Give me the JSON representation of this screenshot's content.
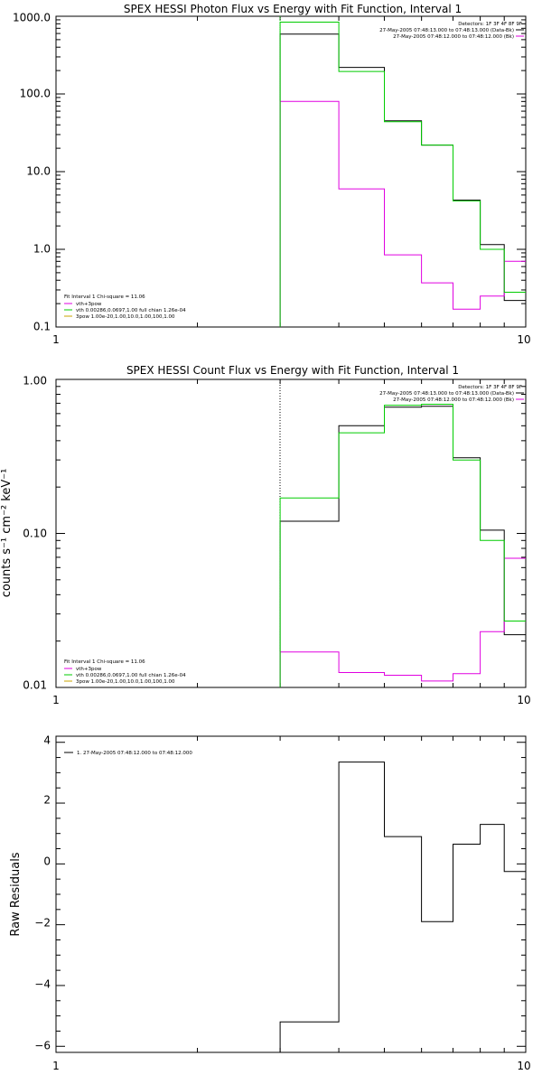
{
  "colors": {
    "background": "#ffffff",
    "axes": "#000000",
    "data_black": "#000000",
    "model_magenta": "#e000e0",
    "model_green": "#00cc00"
  },
  "chart_data": [
    {
      "type": "line",
      "title": "SPEX HESSI Photon Flux vs Energy with Fit Function, Interval 1",
      "xlabel": "",
      "ylabel": "",
      "xscale": "log",
      "yscale": "log",
      "xlim": [
        1,
        10
      ],
      "ylim": [
        0.1,
        1000
      ],
      "x_tick_labels": [
        "1",
        "10"
      ],
      "y_tick_labels": [
        "0.1",
        "1.0",
        "10.0",
        "100.0",
        "1000.0"
      ],
      "y_ticks": [
        0.1,
        1,
        10,
        100,
        1000
      ],
      "energy_edges": [
        3,
        4,
        5,
        6,
        7,
        8,
        9,
        10
      ],
      "fit_start": 3,
      "series": [
        {
          "color": "#000000",
          "values": [
            590,
            220,
            45,
            22,
            4.3,
            1.15,
            0.22
          ]
        },
        {
          "color": "#e000e0",
          "values": [
            80,
            6,
            0.85,
            0.37,
            0.17,
            0.25,
            0.7
          ]
        },
        {
          "color": "#00cc00",
          "values": [
            840,
            195,
            44,
            22,
            4.2,
            1.0,
            0.28
          ]
        }
      ],
      "info_lines": [
        "Detectors: 1F 3F 4F 8F 9F",
        "27-May-2005 07:48:13.000 to 07:48:13.000 (Data-Bk)",
        "27-May-2005 07:48:12.000 to 07:48:12.000 (Bk)"
      ],
      "fit_legend": [
        "Fit Interval 1    Chi-square = 11.06",
        "vth+3pow",
        "vth 0.00286,0.0697,1.00  full chian 1.26e-04",
        "3pow 1.00e-20,1.00,10.0,1.00,100,1.00"
      ],
      "legend_position": "bottom-left"
    },
    {
      "type": "line",
      "title": "SPEX HESSI Count Flux vs Energy with Fit Function, Interval 1",
      "xlabel": "",
      "ylabel": "counts s⁻¹ cm⁻² keV⁻¹",
      "xscale": "log",
      "yscale": "log",
      "xlim": [
        1,
        10
      ],
      "ylim": [
        0.01,
        1.0
      ],
      "x_tick_labels": [
        "1",
        "10"
      ],
      "y_tick_labels": [
        "0.01",
        "0.10",
        "1.00"
      ],
      "y_ticks": [
        0.01,
        0.1,
        1.0
      ],
      "energy_edges": [
        3,
        4,
        5,
        6,
        7,
        8,
        9,
        10
      ],
      "fit_start": 3,
      "series": [
        {
          "color": "#000000",
          "values": [
            0.12,
            0.5,
            0.66,
            0.67,
            0.31,
            0.105,
            0.022
          ]
        },
        {
          "color": "#e000e0",
          "values": [
            0.017,
            0.0125,
            0.012,
            0.011,
            0.0123,
            0.023,
            0.069
          ]
        },
        {
          "color": "#00cc00",
          "values": [
            0.17,
            0.45,
            0.68,
            0.69,
            0.3,
            0.09,
            0.027
          ]
        }
      ],
      "info_lines": [
        "Detectors: 1F 3F 4F 8F 9F",
        "27-May-2005 07:48:13.000 to 07:48:13.000 (Data-Bk)",
        "27-May-2005 07:48:12.000 to 07:48:12.000 (Bk)"
      ],
      "fit_legend": [
        "Fit Interval 1    Chi-square = 11.06",
        "vth+3pow",
        "vth 0.00286,0.0697,1.00  full chian 1.26e-04",
        "3pow 1.00e-20,1.00,10.0,1.00,100,1.00"
      ],
      "legend_position": "bottom-left"
    },
    {
      "type": "line",
      "title": "",
      "xlabel": "",
      "ylabel": "Raw Residuals",
      "xscale": "log",
      "yscale": "linear",
      "xlim": [
        1,
        10
      ],
      "ylim": [
        -6.2,
        4.2
      ],
      "x_tick_labels": [
        "1",
        "10"
      ],
      "y_tick_labels": [
        "−6",
        "−4",
        "−2",
        "0",
        "2",
        "4"
      ],
      "y_ticks": [
        -6,
        -4,
        -2,
        0,
        2,
        4
      ],
      "energy_edges": [
        3,
        4,
        5,
        6,
        7,
        8,
        9,
        10
      ],
      "series": [
        {
          "color": "#000000",
          "values": [
            -5.2,
            3.35,
            0.9,
            -1.9,
            0.65,
            1.3,
            -0.25
          ]
        }
      ],
      "legend": [
        "1. 27-May-2005 07:48:12.000 to 07:48:12.000"
      ],
      "legend_position": "top-left"
    }
  ]
}
